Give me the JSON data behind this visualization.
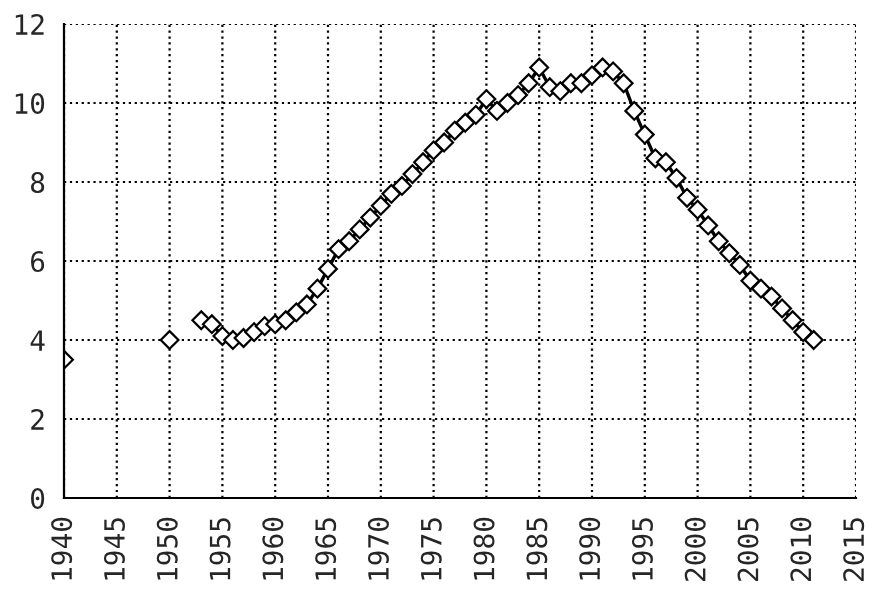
{
  "chart_data": {
    "type": "line",
    "x": [
      1940,
      1945,
      1950,
      1952,
      1953,
      1954,
      1955,
      1956,
      1957,
      1958,
      1959,
      1960,
      1961,
      1962,
      1963,
      1964,
      1965,
      1966,
      1967,
      1968,
      1969,
      1970,
      1971,
      1972,
      1973,
      1974,
      1975,
      1976,
      1977,
      1978,
      1979,
      1980,
      1981,
      1982,
      1983,
      1984,
      1985,
      1986,
      1987,
      1988,
      1989,
      1990,
      1991,
      1992,
      1993,
      1994,
      1995,
      1996,
      1997,
      1998,
      1999,
      2000,
      2001,
      2002,
      2003,
      2004,
      2005,
      2006,
      2007,
      2008,
      2009,
      2010,
      2011
    ],
    "series": [
      {
        "color": "#000000",
        "values": [
          3.5,
          null,
          4.0,
          null,
          4.5,
          4.4,
          4.1,
          4.0,
          4.05,
          4.2,
          4.35,
          4.4,
          4.5,
          4.7,
          4.9,
          5.3,
          5.8,
          6.3,
          6.5,
          6.8,
          7.1,
          7.4,
          7.7,
          7.9,
          8.2,
          8.5,
          8.8,
          9.0,
          9.3,
          9.5,
          9.7,
          10.1,
          9.8,
          10.0,
          10.2,
          10.5,
          10.9,
          10.4,
          10.3,
          10.5,
          10.5,
          10.7,
          10.9,
          10.8,
          10.5,
          9.8,
          9.2,
          8.6,
          8.5,
          8.1,
          7.6,
          7.3,
          6.9,
          6.5,
          6.2,
          5.9,
          5.5,
          5.3,
          5.1,
          4.8,
          4.5,
          4.2,
          4.0
        ]
      }
    ],
    "xlim": [
      1940,
      2015
    ],
    "xticks": [
      1940,
      1945,
      1950,
      1955,
      1960,
      1965,
      1970,
      1975,
      1980,
      1985,
      1990,
      1995,
      2000,
      2005,
      2010,
      2015
    ],
    "ylim": [
      0,
      12
    ],
    "yticks": [
      0,
      2,
      4,
      6,
      8,
      10,
      12
    ],
    "grid": true,
    "marker": "diamond",
    "line_style": "solid"
  }
}
